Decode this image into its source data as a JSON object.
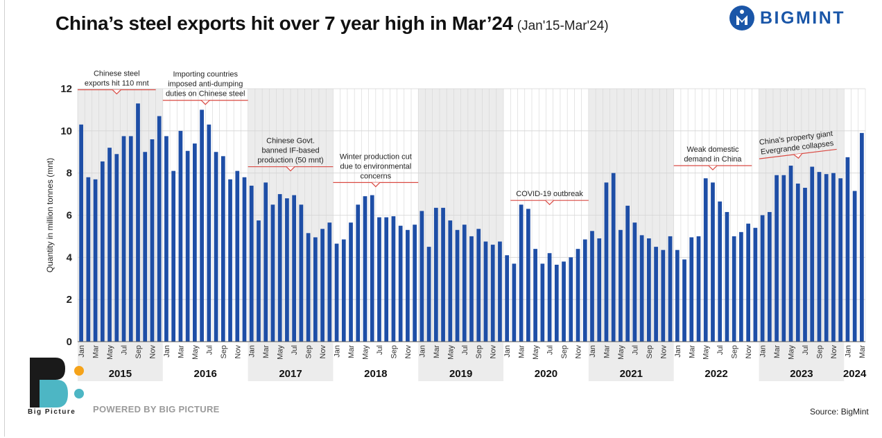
{
  "title": "China’s steel exports hit over 7 year high in Mar’24",
  "subtitle": "(Jan'15-Mar'24)",
  "brand": {
    "name": "BIGMINT",
    "color": "#1a56a8"
  },
  "footer": {
    "logo_caption": "Big Picture",
    "powered_by": "POWERED BY BIG PICTURE",
    "source": "Source: BigMint"
  },
  "colors": {
    "bar": "#1e4ea6",
    "shade": "#ececec",
    "annotation_line": "#d94a43",
    "grid": "#d4d4d4"
  },
  "chart_data": {
    "type": "bar",
    "ylabel": "Quantity in million tonnes (mnt)",
    "ylim": [
      0,
      12
    ],
    "yticks": [
      "0",
      "2",
      "4",
      "6",
      "8",
      "10",
      "12"
    ],
    "grid": true,
    "years": [
      "2015",
      "2016",
      "2017",
      "2018",
      "2019",
      "2020",
      "2021",
      "2022",
      "2023",
      "2024"
    ],
    "month_labels": [
      "Jan",
      "Mar",
      "May",
      "Jul",
      "Sep",
      "Nov"
    ],
    "month_labels_2024": [
      "Jan",
      "Mar"
    ],
    "values": [
      10.3,
      7.8,
      7.7,
      8.55,
      9.2,
      8.9,
      9.75,
      9.75,
      11.3,
      9.0,
      9.6,
      10.7,
      9.75,
      8.1,
      10.0,
      9.05,
      9.4,
      11.0,
      10.3,
      9.0,
      8.8,
      7.7,
      8.1,
      7.8,
      7.4,
      5.75,
      7.55,
      6.5,
      7.0,
      6.8,
      6.95,
      6.5,
      5.15,
      4.95,
      5.35,
      5.65,
      4.65,
      4.85,
      5.65,
      6.5,
      6.9,
      6.95,
      5.9,
      5.9,
      5.95,
      5.5,
      5.3,
      5.55,
      6.2,
      4.5,
      6.35,
      6.35,
      5.75,
      5.3,
      5.55,
      5.0,
      5.35,
      4.75,
      4.6,
      4.75,
      4.1,
      3.7,
      6.5,
      6.3,
      4.4,
      3.7,
      4.2,
      3.65,
      3.8,
      4.0,
      4.4,
      4.85,
      5.25,
      4.9,
      7.55,
      8.0,
      5.3,
      6.45,
      5.65,
      5.05,
      4.9,
      4.5,
      4.35,
      5.0,
      4.35,
      3.9,
      4.95,
      5.0,
      7.75,
      7.55,
      6.65,
      6.15,
      5.0,
      5.2,
      5.6,
      5.4,
      6.0,
      6.15,
      7.9,
      7.9,
      8.35,
      7.5,
      7.3,
      8.3,
      8.05,
      7.95,
      8.0,
      7.75,
      8.75,
      7.15,
      9.9
    ],
    "annotations": [
      {
        "lines": [
          "Chinese steel",
          "exports hit 110 mnt"
        ],
        "month_start": 0,
        "month_end": 10,
        "y": 11.95
      },
      {
        "lines": [
          "Importing countries",
          "imposed anti-dumping",
          "duties on Chinese steel"
        ],
        "month_start": 12,
        "month_end": 23,
        "y": 11.45
      },
      {
        "lines": [
          "Chinese Govt.",
          "banned IF-based",
          "production (50 mnt)"
        ],
        "month_start": 24,
        "month_end": 35,
        "y": 8.3
      },
      {
        "lines": [
          "Winter production cut",
          "due to environmental",
          "concerns"
        ],
        "month_start": 36,
        "month_end": 47,
        "y": 7.55
      },
      {
        "lines": [
          "COVID-19 outbreak"
        ],
        "month_start": 61,
        "month_end": 71,
        "y": 6.7
      },
      {
        "lines": [
          "Weak domestic",
          "demand in China"
        ],
        "month_start": 84,
        "month_end": 94,
        "y": 8.35
      },
      {
        "lines": [
          "China's property giant",
          "Evergrande collapses"
        ],
        "month_start": 96,
        "month_end": 106,
        "y": 8.9,
        "rotated": true
      }
    ]
  }
}
